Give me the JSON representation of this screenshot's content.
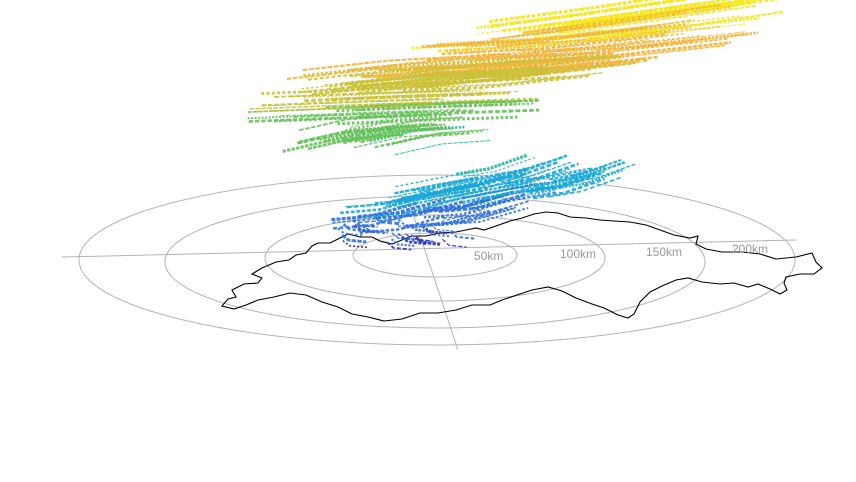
{
  "chart_data": {
    "type": "scatter",
    "projection": "3d-perspective polar range grid",
    "title": "",
    "range_rings": [
      {
        "value": 50,
        "label": "50km"
      },
      {
        "value": 100,
        "label": "100km"
      },
      {
        "value": 150,
        "label": "150km"
      },
      {
        "value": 200,
        "label": "200km"
      }
    ],
    "grid": true,
    "colormap": [
      "#3b2fa8",
      "#2f6fe0",
      "#1aa7d8",
      "#23b7a0",
      "#66c25a",
      "#c9c23a",
      "#f2b43a",
      "#f5e51b"
    ],
    "colors": {
      "ring": "#b4b4b4",
      "border": "#000000",
      "background": "#ffffff"
    },
    "tracks": [
      {
        "x": [
          -15,
          -5,
          10
        ],
        "y": [
          40,
          10,
          -12
        ],
        "h": [
          0.05,
          0.1,
          0.15
        ]
      },
      {
        "x": [
          -20,
          5,
          30
        ],
        "y": [
          30,
          20,
          35
        ],
        "h": [
          0.15,
          0.2,
          0.25
        ]
      },
      {
        "x": [
          10,
          35,
          60
        ],
        "y": [
          60,
          50,
          55
        ],
        "h": [
          0.2,
          0.28,
          0.32
        ]
      },
      {
        "x": [
          40,
          60,
          80
        ],
        "y": [
          70,
          65,
          80
        ],
        "h": [
          0.25,
          0.3,
          0.35
        ]
      },
      {
        "x": [
          -60,
          -30,
          0
        ],
        "y": [
          100,
          90,
          80
        ],
        "h": [
          0.45,
          0.55,
          0.6
        ]
      },
      {
        "x": [
          -90,
          -40,
          20
        ],
        "y": [
          130,
          120,
          110
        ],
        "h": [
          0.6,
          0.65,
          0.7
        ]
      },
      {
        "x": [
          -30,
          20,
          80
        ],
        "y": [
          150,
          140,
          150
        ],
        "h": [
          0.75,
          0.8,
          0.85
        ]
      },
      {
        "x": [
          0,
          60,
          130
        ],
        "y": [
          180,
          175,
          190
        ],
        "h": [
          0.85,
          0.9,
          0.95
        ]
      },
      {
        "x": [
          -70,
          -20,
          50
        ],
        "y": [
          160,
          165,
          170
        ],
        "h": [
          0.7,
          0.75,
          0.78
        ]
      },
      {
        "x": [
          30,
          80,
          140
        ],
        "y": [
          200,
          210,
          230
        ],
        "h": [
          0.9,
          0.95,
          1.0
        ]
      }
    ]
  }
}
